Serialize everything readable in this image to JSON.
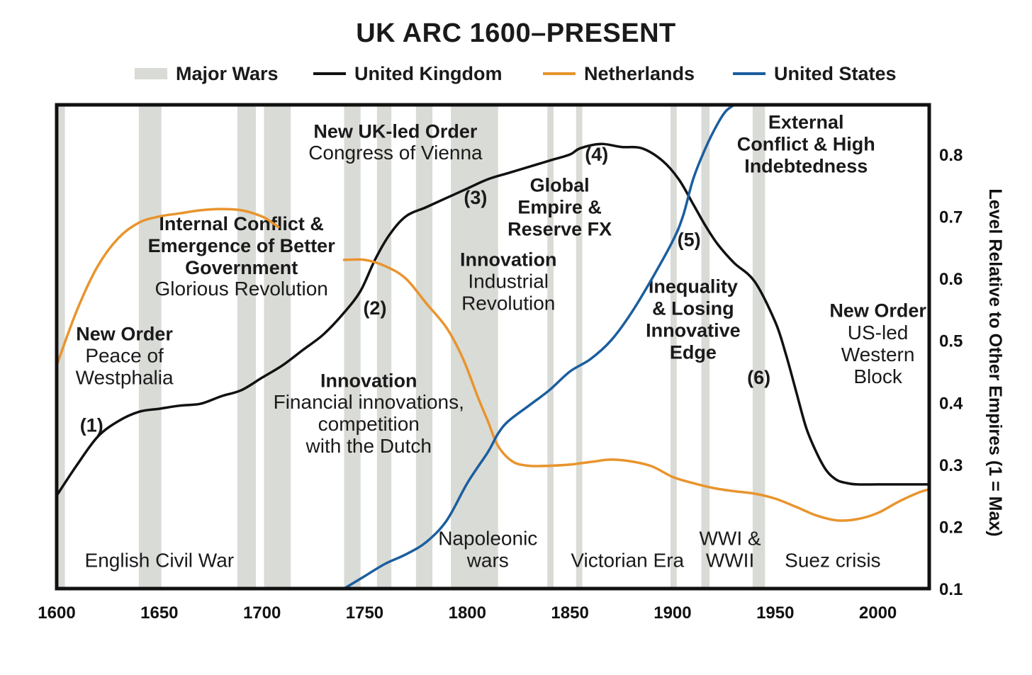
{
  "chart_data": {
    "type": "line",
    "title": "UK ARC 1600–PRESENT",
    "xlabel": "",
    "ylabel": "Level Relative to Other Empires (1 = Max)",
    "xlim": [
      1600,
      2025
    ],
    "ylim": [
      0.1,
      0.88
    ],
    "x_ticks": [
      "1600",
      "1650",
      "1700",
      "1750",
      "1800",
      "1850",
      "1900",
      "1950",
      "2000"
    ],
    "y_ticks": [
      "0.1",
      "0.2",
      "0.3",
      "0.4",
      "0.5",
      "0.6",
      "0.7",
      "0.8"
    ],
    "legend_position": "top",
    "legend": {
      "wars": "Major Wars",
      "uk": "United Kingdom",
      "nl": "Netherlands",
      "us": "United States"
    },
    "colors": {
      "wars": "#d9dbd6",
      "uk": "#111111",
      "nl": "#e8942d",
      "us": "#1b5e9e"
    },
    "war_bands": [
      [
        1601,
        1604
      ],
      [
        1640,
        1651
      ],
      [
        1688,
        1697
      ],
      [
        1701,
        1714
      ],
      [
        1740,
        1748
      ],
      [
        1756,
        1763
      ],
      [
        1775,
        1783
      ],
      [
        1792,
        1815
      ],
      [
        1839,
        1842
      ],
      [
        1853,
        1856
      ],
      [
        1899,
        1902
      ],
      [
        1914,
        1918
      ],
      [
        1939,
        1945
      ]
    ],
    "series": [
      {
        "name": "United Kingdom",
        "color": "#111111",
        "points": [
          [
            1600,
            0.25
          ],
          [
            1610,
            0.3
          ],
          [
            1620,
            0.345
          ],
          [
            1630,
            0.37
          ],
          [
            1640,
            0.385
          ],
          [
            1650,
            0.39
          ],
          [
            1660,
            0.395
          ],
          [
            1670,
            0.398
          ],
          [
            1680,
            0.41
          ],
          [
            1690,
            0.42
          ],
          [
            1700,
            0.44
          ],
          [
            1710,
            0.46
          ],
          [
            1720,
            0.485
          ],
          [
            1730,
            0.51
          ],
          [
            1740,
            0.545
          ],
          [
            1748,
            0.58
          ],
          [
            1755,
            0.63
          ],
          [
            1762,
            0.67
          ],
          [
            1770,
            0.7
          ],
          [
            1780,
            0.715
          ],
          [
            1790,
            0.73
          ],
          [
            1800,
            0.745
          ],
          [
            1810,
            0.76
          ],
          [
            1820,
            0.77
          ],
          [
            1830,
            0.78
          ],
          [
            1840,
            0.79
          ],
          [
            1850,
            0.8
          ],
          [
            1855,
            0.81
          ],
          [
            1865,
            0.817
          ],
          [
            1875,
            0.812
          ],
          [
            1885,
            0.81
          ],
          [
            1895,
            0.79
          ],
          [
            1903,
            0.76
          ],
          [
            1910,
            0.72
          ],
          [
            1916,
            0.685
          ],
          [
            1922,
            0.655
          ],
          [
            1930,
            0.625
          ],
          [
            1940,
            0.595
          ],
          [
            1950,
            0.53
          ],
          [
            1955,
            0.48
          ],
          [
            1960,
            0.42
          ],
          [
            1965,
            0.36
          ],
          [
            1970,
            0.32
          ],
          [
            1975,
            0.29
          ],
          [
            1980,
            0.275
          ],
          [
            1985,
            0.27
          ],
          [
            1990,
            0.268
          ],
          [
            2000,
            0.268
          ],
          [
            2010,
            0.268
          ],
          [
            2020,
            0.268
          ],
          [
            2025,
            0.268
          ]
        ]
      },
      {
        "name": "Netherlands",
        "color": "#e8942d",
        "points": [
          [
            1600,
            0.46
          ],
          [
            1610,
            0.55
          ],
          [
            1620,
            0.62
          ],
          [
            1630,
            0.665
          ],
          [
            1640,
            0.69
          ],
          [
            1650,
            0.7
          ],
          [
            1660,
            0.705
          ],
          [
            1670,
            0.71
          ],
          [
            1680,
            0.712
          ],
          [
            1690,
            0.71
          ],
          [
            1700,
            0.7
          ],
          [
            1705,
            0.69
          ],
          [
            1708,
            0.683
          ]
        ]
      },
      {
        "name": "Netherlands",
        "color": "#e8942d",
        "points": [
          [
            1740,
            0.63
          ],
          [
            1750,
            0.63
          ],
          [
            1760,
            0.62
          ],
          [
            1770,
            0.6
          ],
          [
            1780,
            0.56
          ],
          [
            1790,
            0.52
          ],
          [
            1798,
            0.47
          ],
          [
            1805,
            0.41
          ],
          [
            1810,
            0.37
          ],
          [
            1815,
            0.33
          ],
          [
            1822,
            0.305
          ],
          [
            1830,
            0.298
          ],
          [
            1840,
            0.298
          ],
          [
            1850,
            0.3
          ],
          [
            1855,
            0.302
          ],
          [
            1862,
            0.305
          ],
          [
            1870,
            0.308
          ],
          [
            1880,
            0.305
          ],
          [
            1890,
            0.297
          ],
          [
            1900,
            0.28
          ],
          [
            1910,
            0.27
          ],
          [
            1920,
            0.262
          ],
          [
            1930,
            0.257
          ],
          [
            1940,
            0.253
          ],
          [
            1950,
            0.245
          ],
          [
            1960,
            0.232
          ],
          [
            1970,
            0.218
          ],
          [
            1980,
            0.21
          ],
          [
            1990,
            0.212
          ],
          [
            2000,
            0.222
          ],
          [
            2010,
            0.24
          ],
          [
            2020,
            0.255
          ],
          [
            2025,
            0.26
          ]
        ]
      },
      {
        "name": "United States",
        "color": "#1b5e9e",
        "points": [
          [
            1740,
            0.1
          ],
          [
            1750,
            0.12
          ],
          [
            1760,
            0.14
          ],
          [
            1770,
            0.155
          ],
          [
            1780,
            0.175
          ],
          [
            1790,
            0.21
          ],
          [
            1800,
            0.27
          ],
          [
            1810,
            0.32
          ],
          [
            1815,
            0.35
          ],
          [
            1820,
            0.37
          ],
          [
            1830,
            0.395
          ],
          [
            1840,
            0.42
          ],
          [
            1850,
            0.45
          ],
          [
            1860,
            0.47
          ],
          [
            1870,
            0.5
          ],
          [
            1880,
            0.545
          ],
          [
            1890,
            0.6
          ],
          [
            1900,
            0.66
          ],
          [
            1905,
            0.7
          ],
          [
            1910,
            0.76
          ],
          [
            1916,
            0.81
          ],
          [
            1922,
            0.85
          ],
          [
            1926,
            0.87
          ],
          [
            1930,
            0.88
          ]
        ]
      }
    ],
    "annotations": [
      {
        "lines": [
          "New Order"
        ],
        "bold": true,
        "x": 1633,
        "y": 0.5
      },
      {
        "lines": [
          "Peace of",
          "Westphalia"
        ],
        "bold": false,
        "x": 1633,
        "y": 0.465
      },
      {
        "lines": [
          "(1)"
        ],
        "bold": true,
        "x": 1617,
        "y": 0.353
      },
      {
        "lines": [
          "Internal Conflict &",
          "Emergence of Better",
          "Government"
        ],
        "bold": true,
        "x": 1690,
        "y": 0.678
      },
      {
        "lines": [
          "Glorious Revolution"
        ],
        "bold": false,
        "x": 1690,
        "y": 0.573
      },
      {
        "lines": [
          "(2)"
        ],
        "bold": true,
        "x": 1755,
        "y": 0.542
      },
      {
        "lines": [
          "Innovation"
        ],
        "bold": true,
        "x": 1752,
        "y": 0.425
      },
      {
        "lines": [
          "Financial innovations,",
          "competition",
          "with the Dutch"
        ],
        "bold": false,
        "x": 1752,
        "y": 0.39
      },
      {
        "lines": [
          "New UK-led Order"
        ],
        "bold": true,
        "x": 1765,
        "y": 0.827
      },
      {
        "lines": [
          "Congress of Vienna"
        ],
        "bold": false,
        "x": 1765,
        "y": 0.792
      },
      {
        "lines": [
          "(3)"
        ],
        "bold": true,
        "x": 1804,
        "y": 0.72
      },
      {
        "lines": [
          "Innovation"
        ],
        "bold": true,
        "x": 1820,
        "y": 0.62
      },
      {
        "lines": [
          "Industrial",
          "Revolution"
        ],
        "bold": false,
        "x": 1820,
        "y": 0.585
      },
      {
        "lines": [
          "(4)"
        ],
        "bold": true,
        "x": 1863,
        "y": 0.79
      },
      {
        "lines": [
          "Global",
          "Empire &",
          "Reserve FX"
        ],
        "bold": true,
        "x": 1845,
        "y": 0.74
      },
      {
        "lines": [
          "(5)"
        ],
        "bold": true,
        "x": 1908,
        "y": 0.652
      },
      {
        "lines": [
          "External",
          "Conflict & High",
          "Indebtedness"
        ],
        "bold": true,
        "x": 1965,
        "y": 0.842
      },
      {
        "lines": [
          "Inequality",
          "& Losing",
          "Innovative",
          "Edge"
        ],
        "bold": true,
        "x": 1910,
        "y": 0.577
      },
      {
        "lines": [
          "(6)"
        ],
        "bold": true,
        "x": 1942,
        "y": 0.43
      },
      {
        "lines": [
          "New Order"
        ],
        "bold": true,
        "x": 2000,
        "y": 0.538
      },
      {
        "lines": [
          "US-led",
          "Western",
          "Block"
        ],
        "bold": false,
        "x": 2000,
        "y": 0.502
      },
      {
        "lines": [
          "English Civil War"
        ],
        "bold": false,
        "x": 1650,
        "y": 0.135
      },
      {
        "lines": [
          "Napoleonic",
          "wars"
        ],
        "bold": false,
        "x": 1810,
        "y": 0.17
      },
      {
        "lines": [
          "Victorian Era"
        ],
        "bold": false,
        "x": 1878,
        "y": 0.135
      },
      {
        "lines": [
          "WWI &",
          "WWII"
        ],
        "bold": false,
        "x": 1928,
        "y": 0.17
      },
      {
        "lines": [
          "Suez crisis"
        ],
        "bold": false,
        "x": 1978,
        "y": 0.135
      }
    ]
  }
}
